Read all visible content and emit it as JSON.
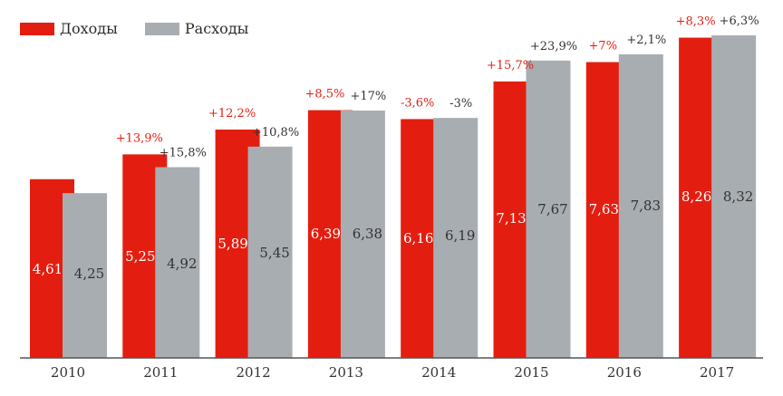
{
  "colors": {
    "income": "#e31e10",
    "expense": "#a8adb2",
    "axis": "#555555",
    "label_dark": "#333333",
    "label_light": "#ffffff"
  },
  "chart_data": {
    "type": "bar",
    "categories": [
      "2010",
      "2011",
      "2012",
      "2013",
      "2014",
      "2015",
      "2016",
      "2017"
    ],
    "series": [
      {
        "name": "Доходы",
        "values": [
          4.61,
          5.25,
          5.89,
          6.39,
          6.16,
          7.13,
          7.63,
          8.26
        ],
        "value_labels": [
          "4,61",
          "5,25",
          "5,89",
          "6,39",
          "6,16",
          "7,13",
          "7,63",
          "8,26"
        ],
        "change_labels": [
          "",
          "+13,9%",
          "+12,2%",
          "+8,5%",
          "-3,6%",
          "+15,7%",
          "+7%",
          "+8,3%"
        ]
      },
      {
        "name": "Расходы",
        "values": [
          4.25,
          4.92,
          5.45,
          6.38,
          6.19,
          7.67,
          7.83,
          8.32
        ],
        "value_labels": [
          "4,25",
          "4,92",
          "5,45",
          "6,38",
          "6,19",
          "7,67",
          "7,83",
          "8,32"
        ],
        "change_labels": [
          "",
          "+15,8%",
          "+10,8%",
          "+17%",
          "-3%",
          "+23,9%",
          "+2,1%",
          "+6,3%"
        ]
      }
    ],
    "ylim": [
      0,
      8.32
    ],
    "grid": false,
    "legend_position": "top-left",
    "title": "",
    "xlabel": "",
    "ylabel": ""
  }
}
